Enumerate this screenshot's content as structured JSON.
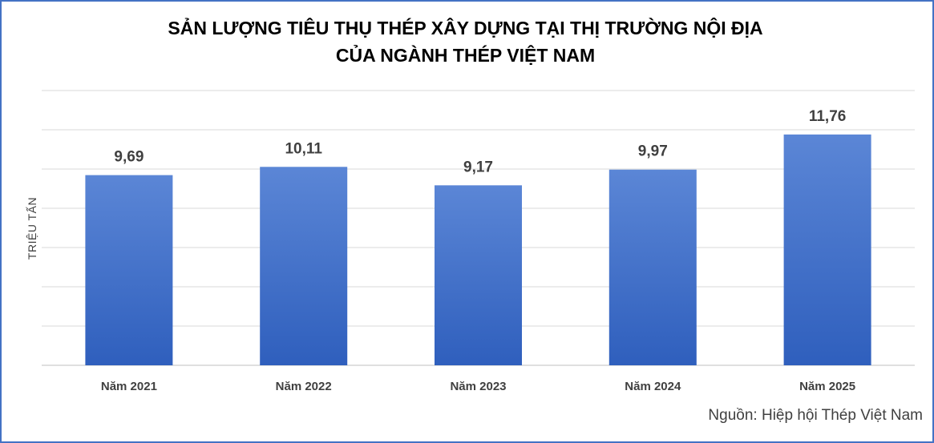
{
  "chart_data": {
    "type": "bar",
    "title_line1": "SẢN LƯỢNG TIÊU THỤ THÉP XÂY DỰNG TẠI THỊ TRƯỜNG NỘI ĐỊA",
    "title_line2": "CỦA NGÀNH THÉP VIỆT NAM",
    "ylabel": "TRIỆU TẤN",
    "categories": [
      "Năm 2021",
      "Năm 2022",
      "Năm 2023",
      "Năm 2024",
      "Năm 2025"
    ],
    "values": [
      9.69,
      10.11,
      9.17,
      9.97,
      11.76
    ],
    "value_labels": [
      "9,69",
      "10,11",
      "9,17",
      "9,97",
      "11,76"
    ],
    "ylim": [
      0,
      14
    ],
    "grid": true,
    "bar_color_top": "#5b86d6",
    "bar_color_bottom": "#2f5fbd"
  },
  "source": "Nguồn: Hiệp hội Thép Việt Nam"
}
